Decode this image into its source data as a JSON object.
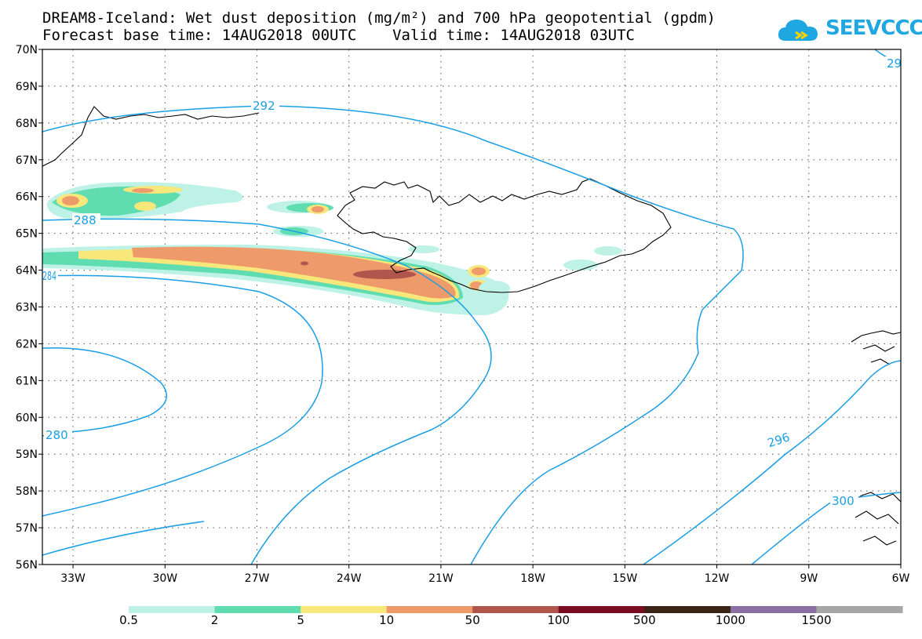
{
  "title_line1": "DREAM8-Iceland: Wet dust deposition (mg/m²) and 700 hPa geopotential (gpdm)",
  "title_line2": "Forecast base time: 14AUG2018 00UTC    Valid time: 14AUG2018 03UTC",
  "logo": {
    "text": "SEEVCCC",
    "icon": "cloud-icon",
    "color": "#1ea7e1"
  },
  "map": {
    "lon_range": [
      -34,
      -6
    ],
    "lat_range": [
      56,
      70
    ],
    "lat_ticks": [
      {
        "value": 70,
        "label": "70N"
      },
      {
        "value": 69,
        "label": "69N"
      },
      {
        "value": 68,
        "label": "68N"
      },
      {
        "value": 67,
        "label": "67N"
      },
      {
        "value": 66,
        "label": "66N"
      },
      {
        "value": 65,
        "label": "65N"
      },
      {
        "value": 64,
        "label": "64N"
      },
      {
        "value": 63,
        "label": "63N"
      },
      {
        "value": 62,
        "label": "62N"
      },
      {
        "value": 61,
        "label": "61N"
      },
      {
        "value": 60,
        "label": "60N"
      },
      {
        "value": 59,
        "label": "59N"
      },
      {
        "value": 58,
        "label": "58N"
      },
      {
        "value": 57,
        "label": "57N"
      },
      {
        "value": 56,
        "label": "56N"
      }
    ],
    "lon_ticks": [
      {
        "value": -33,
        "label": "33W"
      },
      {
        "value": -30,
        "label": "30W"
      },
      {
        "value": -27,
        "label": "27W"
      },
      {
        "value": -24,
        "label": "24W"
      },
      {
        "value": -21,
        "label": "21W"
      },
      {
        "value": -18,
        "label": "18W"
      },
      {
        "value": -15,
        "label": "15W"
      },
      {
        "value": -12,
        "label": "12W"
      },
      {
        "value": -9,
        "label": "9W"
      },
      {
        "value": -6,
        "label": "6W"
      }
    ],
    "grid": "dotted",
    "contour_color": "#1a9fe6",
    "contour_labels": [
      "292",
      "288",
      "284",
      "280",
      "296",
      "300",
      "29"
    ]
  },
  "colorbar": {
    "labels": [
      "0.5",
      "2",
      "5",
      "10",
      "50",
      "100",
      "500",
      "1000",
      "1500"
    ],
    "colors": [
      "#bff2e6",
      "#5fdcb0",
      "#f8e77a",
      "#ef9a6b",
      "#b0564c",
      "#7a0d22",
      "#3a2415",
      "#8a70a2",
      "#a6a6a6"
    ]
  }
}
